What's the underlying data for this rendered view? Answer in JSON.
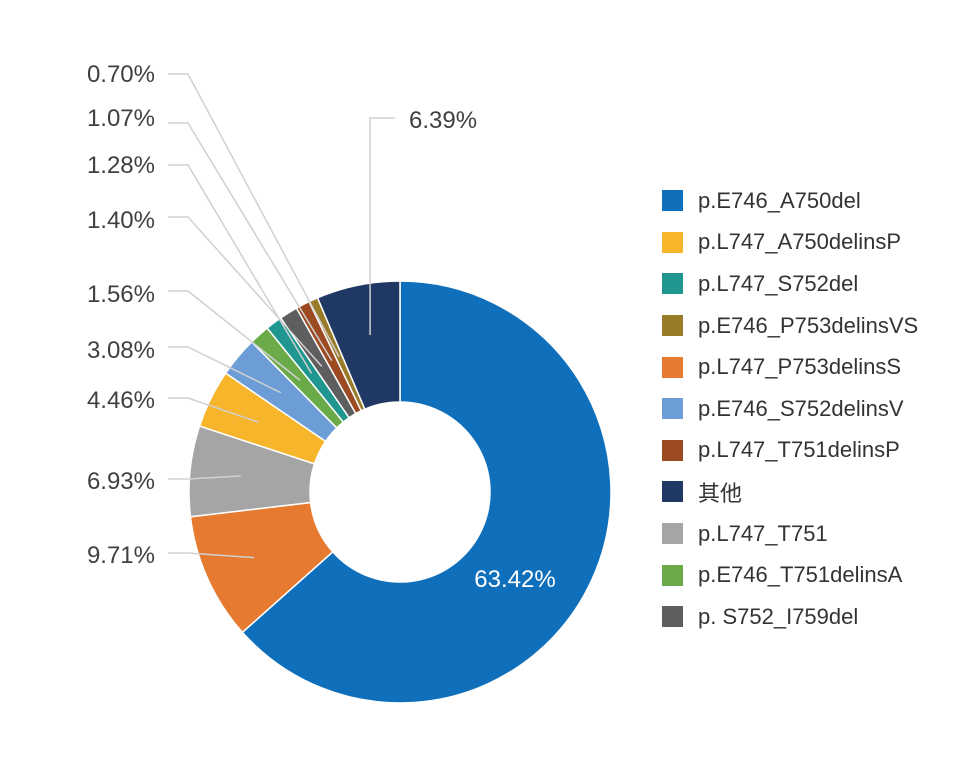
{
  "chart_data": {
    "type": "pie",
    "variant": "donut",
    "slices": [
      {
        "label": "p.E746_A750del",
        "value": 63.42,
        "value_label": "63.42%",
        "color": "#0F6FBB"
      },
      {
        "label": "p.L747_A750delinsP",
        "value": 4.46,
        "value_label": "4.46%",
        "color": "#F7B52C"
      },
      {
        "label": "p.L747_S752del",
        "value": 1.28,
        "value_label": "1.28%",
        "color": "#1F9690"
      },
      {
        "label": "p.E746_P753delinsVS",
        "value": 0.7,
        "value_label": "0.70%",
        "color": "#9A7B2A"
      },
      {
        "label": "p.L747_P753delinsS",
        "value": 9.71,
        "value_label": "9.71%",
        "color": "#E57A30"
      },
      {
        "label": "p.E746_S752delinsV",
        "value": 3.08,
        "value_label": "3.08%",
        "color": "#6D9DD6"
      },
      {
        "label": "p.L747_T751delinsP",
        "value": 1.07,
        "value_label": "1.07%",
        "color": "#9B4A22"
      },
      {
        "label": "其他",
        "value": 6.39,
        "value_label": "6.39%",
        "color": "#1F3864"
      },
      {
        "label": "p.L747_T751",
        "value": 6.93,
        "value_label": "6.93%",
        "color": "#A5A5A5"
      },
      {
        "label": "p.E746_T751delinsA",
        "value": 1.56,
        "value_label": "1.56%",
        "color": "#6BAA48"
      },
      {
        "label": "p. S752_I759del",
        "value": 1.4,
        "value_label": "1.40%",
        "color": "#5E5E5E"
      }
    ],
    "clockwise_order": [
      0,
      4,
      8,
      1,
      5,
      9,
      2,
      10,
      6,
      3,
      7
    ],
    "legend_position": "right"
  }
}
